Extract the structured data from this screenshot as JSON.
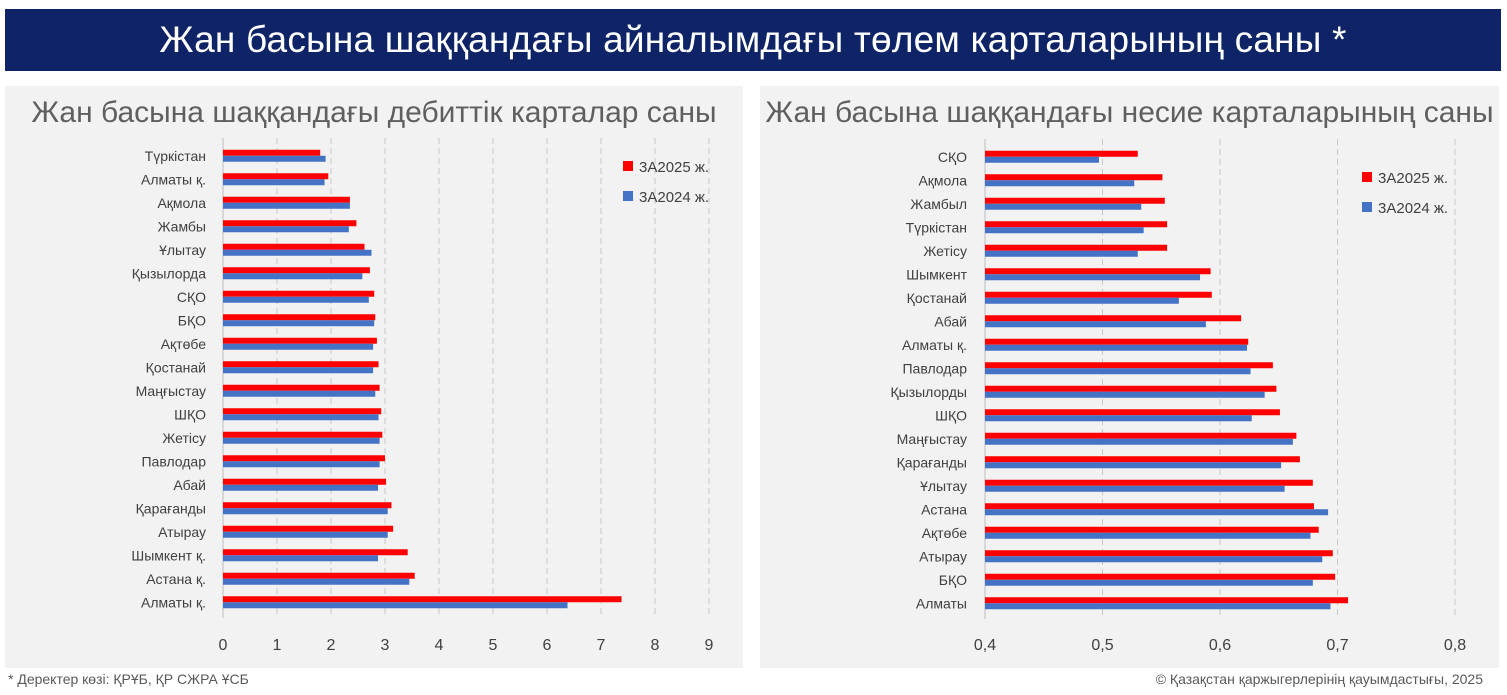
{
  "header": {
    "title": "Жан басына шаққандағы айналымдағы төлем карталарының саны *"
  },
  "footer": {
    "source": "* Деректер көзі: ҚРҰБ, ҚР СЖРА ҰСБ",
    "copyright": "© Қазақстан қаржыгерлерінің қауымдастығы, 2025"
  },
  "colors": {
    "series_2025": "#ff0000",
    "series_2024": "#4472c4",
    "banner": "#0e2466",
    "panel": "#f2f2f2"
  },
  "chart_data": [
    {
      "type": "bar",
      "orientation": "horizontal",
      "title": "Жан басына шаққандағы дебиттік карталар саны",
      "categories": [
        "Түркістан",
        "Алматы қ.",
        "Ақмола",
        "Жамбы",
        "Ұлытау",
        "Қызылорда",
        "СҚО",
        "БҚО",
        "Ақтөбе",
        "Қостанай",
        "Маңғыстау",
        "ШҚО",
        "Жетісу",
        "Павлодар",
        "Абай",
        "Қарағанды",
        "Атырау",
        "Шымкент қ.",
        "Астана қ.",
        "Алматы қ."
      ],
      "series": [
        {
          "name": "3А2025 ж.",
          "color": "#ff0000",
          "values": [
            1.8,
            1.95,
            2.35,
            2.47,
            2.62,
            2.72,
            2.8,
            2.82,
            2.85,
            2.88,
            2.9,
            2.93,
            2.95,
            3.0,
            3.02,
            3.12,
            3.15,
            3.42,
            3.55,
            7.38
          ]
        },
        {
          "name": "3А2024 ж.",
          "color": "#4472c4",
          "values": [
            1.9,
            1.88,
            2.35,
            2.33,
            2.75,
            2.58,
            2.7,
            2.8,
            2.78,
            2.78,
            2.82,
            2.88,
            2.9,
            2.9,
            2.87,
            3.05,
            3.05,
            2.87,
            3.45,
            6.38
          ]
        }
      ],
      "xlim": [
        0,
        9
      ],
      "xticks": [
        "0",
        "1",
        "2",
        "3",
        "4",
        "5",
        "6",
        "7",
        "8",
        "9"
      ],
      "grid": "vertical dashed",
      "legend": "top-right"
    },
    {
      "type": "bar",
      "orientation": "horizontal",
      "title": "Жан басына шаққандағы несие карталарының саны",
      "categories": [
        "СҚО",
        "Ақмола",
        "Жамбыл",
        "Түркістан",
        "Жетісу",
        "Шымкент",
        "Қостанай",
        "Абай",
        "Алматы қ.",
        "Павлодар",
        "Қызылорды",
        "ШҚО",
        "Маңғыстау",
        "Қарағанды",
        "Ұлытау",
        "Астана",
        "Ақтөбе",
        "Атырау",
        "БҚО",
        "Алматы"
      ],
      "series": [
        {
          "name": "3А2025 ж.",
          "color": "#ff0000",
          "values": [
            0.53,
            0.551,
            0.553,
            0.555,
            0.555,
            0.592,
            0.593,
            0.618,
            0.624,
            0.645,
            0.648,
            0.651,
            0.665,
            0.668,
            0.679,
            0.68,
            0.684,
            0.696,
            0.698,
            0.709
          ]
        },
        {
          "name": "3А2024 ж.",
          "color": "#4472c4",
          "values": [
            0.497,
            0.527,
            0.533,
            0.535,
            0.53,
            0.583,
            0.565,
            0.588,
            0.623,
            0.626,
            0.638,
            0.627,
            0.662,
            0.652,
            0.655,
            0.692,
            0.677,
            0.687,
            0.679,
            0.694
          ]
        }
      ],
      "xlim": [
        0.4,
        0.8
      ],
      "xticks": [
        "0,4",
        "0,5",
        "0,6",
        "0,7",
        "0,8"
      ],
      "grid": "vertical dashed",
      "legend": "top-right"
    }
  ]
}
